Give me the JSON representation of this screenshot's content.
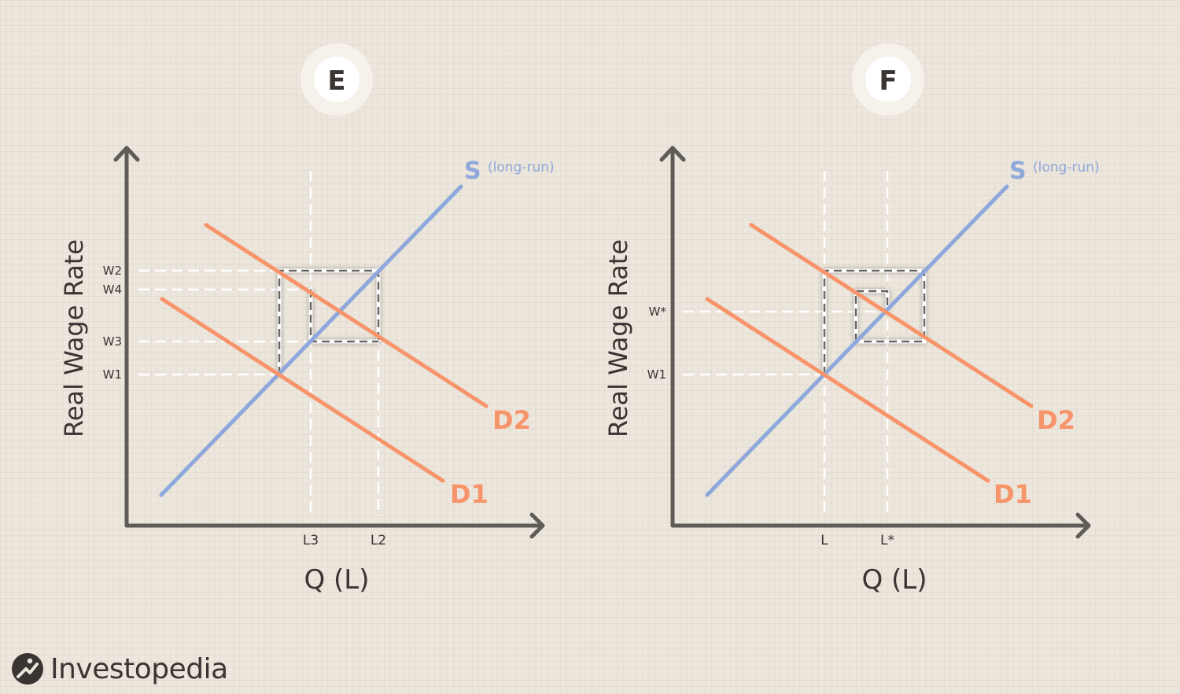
{
  "colors": {
    "axis": "#5f5b57",
    "supply": "#8ea8dc",
    "demand": "#f7946a",
    "guide": "#ffffff",
    "box": "#6b6561",
    "text": "#3a3533",
    "badge_halo": "#f6f1ea"
  },
  "panels": [
    {
      "badge": "E",
      "ylabel": "Real Wage Rate",
      "xlabel": "Q (L)",
      "supply_label": "S",
      "supply_note": "(long-run)",
      "d1_label": "D1",
      "d2_label": "D2",
      "wage_ticks": [
        "W2",
        "W4",
        "W3",
        "W1"
      ],
      "labor_ticks": [
        "L3",
        "L2"
      ]
    },
    {
      "badge": "F",
      "ylabel": "Real Wage Rate",
      "xlabel": "Q (L)",
      "supply_label": "S",
      "supply_note": "(long-run)",
      "d1_label": "D1",
      "d2_label": "D2",
      "wage_ticks": [
        "W*",
        "W1"
      ],
      "labor_ticks": [
        "L",
        "L*"
      ]
    }
  ],
  "brand": {
    "name": "Investopedia",
    "icon": "investopedia-logo-icon"
  }
}
